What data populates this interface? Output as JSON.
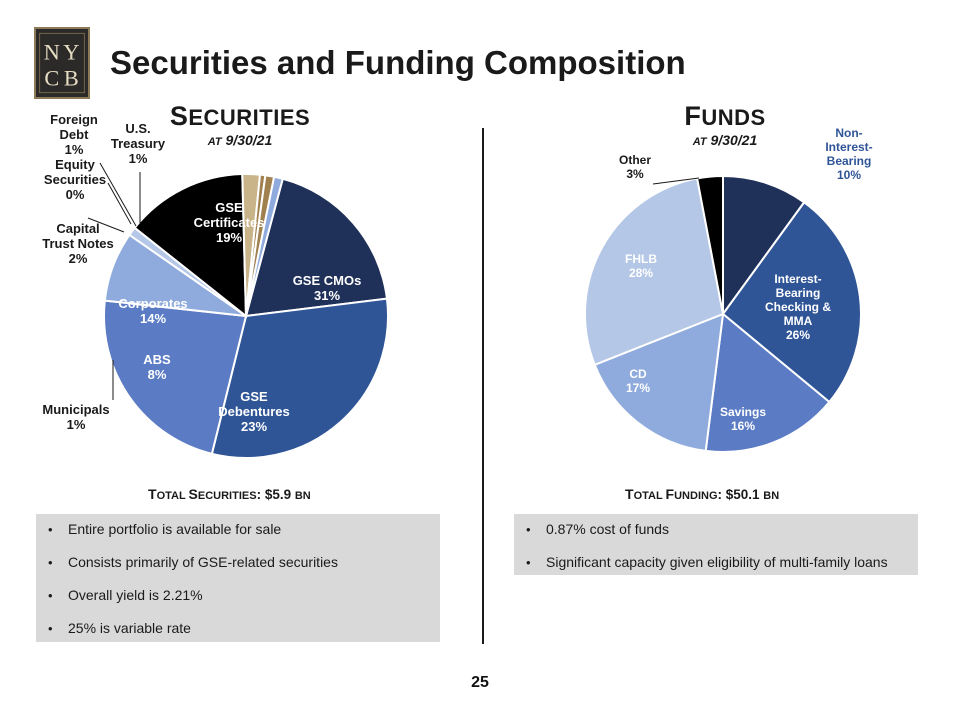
{
  "header": {
    "title": "Securities and Funding Composition",
    "logo_text": "NYCB"
  },
  "securities": {
    "heading_first": "S",
    "heading_rest": "ECURITIES",
    "subheading_prefix": "AT",
    "subheading_date": " 9/30/21",
    "total_first": "T",
    "total_rest": "OTAL ",
    "total_first2": "S",
    "total_rest2": "ECURITIES",
    "total_value": ": $5.9 ",
    "total_unit": "BN",
    "bullets": [
      "Entire portfolio is available for sale",
      "Consists primarily of GSE-related securities",
      "Overall yield is 2.21%",
      "25% is variable rate"
    ]
  },
  "funds": {
    "heading_first": "F",
    "heading_rest": "UNDS",
    "subheading_prefix": "AT",
    "subheading_date": " 9/30/21",
    "total_first": "T",
    "total_rest": "OTAL ",
    "total_first2": "F",
    "total_rest2": "UNDING",
    "total_value": ": $50.1 ",
    "total_unit": "BN",
    "bullets": [
      "0.87% cost of funds",
      "Significant capacity given eligibility of multi-family loans"
    ]
  },
  "page_number": "25",
  "colors": {
    "navy": "#1f3059",
    "blue": "#2f5597",
    "mid_blue": "#5b7bc4",
    "light_blue": "#8faadc",
    "pale_blue": "#b4c7e7",
    "black": "#000000",
    "tan": "#c9b48a",
    "bronze": "#a0804f"
  },
  "chart_data": [
    {
      "type": "pie",
      "title": "Securities at 9/30/21",
      "slices": [
        {
          "label": "GSE Certificates",
          "value": 19,
          "color": "#1f3059"
        },
        {
          "label": "GSE CMOs",
          "value": 31,
          "color": "#2f5597"
        },
        {
          "label": "GSE Debentures",
          "value": 23,
          "color": "#5b7bc4"
        },
        {
          "label": "ABS",
          "value": 8,
          "color": "#8faadc"
        },
        {
          "label": "Municipals",
          "value": 1,
          "color": "#b4c7e7"
        },
        {
          "label": "Corporates",
          "value": 14,
          "color": "#000000"
        },
        {
          "label": "Capital Trust Notes",
          "value": 2,
          "color": "#c9b48a"
        },
        {
          "label": "Equity Securities",
          "value": 0,
          "color": "#a0804f"
        },
        {
          "label": "Foreign Debt",
          "value": 1,
          "color": "#a0804f"
        },
        {
          "label": "U.S. Treasury",
          "value": 1,
          "color": "#8faadc"
        }
      ],
      "labels": {
        "gse_certificates": [
          "GSE",
          "Certificates",
          "19%"
        ],
        "gse_cmos": [
          "GSE CMOs",
          "31%"
        ],
        "gse_debentures": [
          "GSE",
          "Debentures",
          "23%"
        ],
        "abs": [
          "ABS",
          "8%"
        ],
        "corporates": [
          "Corporates",
          "14%"
        ],
        "municipals": [
          "Municipals",
          "1%"
        ],
        "capital_trust": [
          "Capital",
          "Trust Notes",
          "2%"
        ],
        "equity": [
          "Equity",
          "Securities",
          "0%"
        ],
        "foreign": [
          "Foreign",
          "Debt",
          "1%"
        ],
        "treasury": [
          "U.S.",
          "Treasury",
          "1%"
        ]
      }
    },
    {
      "type": "pie",
      "title": "Funds at 9/30/21",
      "slices": [
        {
          "label": "Non-Interest-Bearing",
          "value": 10,
          "color": "#1f3059"
        },
        {
          "label": "Interest-Bearing Checking & MMA",
          "value": 26,
          "color": "#2f5597"
        },
        {
          "label": "Savings",
          "value": 16,
          "color": "#5b7bc4"
        },
        {
          "label": "CD",
          "value": 17,
          "color": "#8faadc"
        },
        {
          "label": "FHLB",
          "value": 28,
          "color": "#b4c7e7"
        },
        {
          "label": "Other",
          "value": 3,
          "color": "#000000"
        }
      ],
      "labels": {
        "non_interest": [
          "Non-",
          "Interest-",
          "Bearing",
          "10%"
        ],
        "interest_bearing": [
          "Interest-",
          "Bearing",
          "Checking &",
          "MMA",
          "26%"
        ],
        "savings": [
          "Savings",
          "16%"
        ],
        "cd": [
          "CD",
          "17%"
        ],
        "fhlb": [
          "FHLB",
          "28%"
        ],
        "other": [
          "Other",
          "3%"
        ]
      }
    }
  ]
}
